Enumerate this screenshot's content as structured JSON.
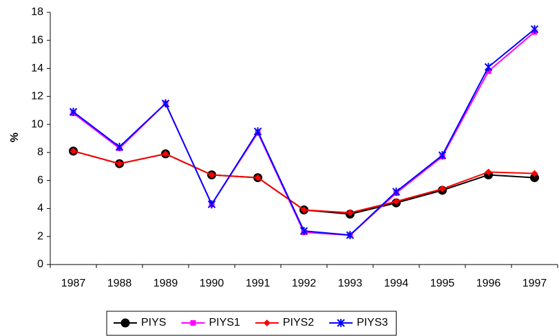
{
  "chart_data": {
    "type": "line",
    "y_label": "%",
    "categories": [
      "1987",
      "1988",
      "1989",
      "1990",
      "1991",
      "1992",
      "1993",
      "1994",
      "1995",
      "1996",
      "1997"
    ],
    "series": [
      {
        "name": "PIYS",
        "color": "#000000",
        "marker": "circle",
        "values": [
          8.1,
          7.2,
          7.9,
          6.4,
          6.2,
          3.9,
          3.6,
          4.4,
          5.3,
          6.4,
          6.2
        ]
      },
      {
        "name": "PIYS1",
        "color": "#ff00ff",
        "marker": "square",
        "values": [
          10.8,
          8.3,
          11.5,
          4.3,
          9.4,
          2.3,
          2.1,
          5.1,
          7.7,
          13.8,
          16.6
        ]
      },
      {
        "name": "PIYS2",
        "color": "#ff0000",
        "marker": "diamond",
        "values": [
          8.1,
          7.2,
          7.9,
          6.4,
          6.2,
          3.9,
          3.7,
          4.5,
          5.4,
          6.6,
          6.5
        ]
      },
      {
        "name": "PIYS3",
        "color": "#0000ff",
        "marker": "star",
        "values": [
          10.9,
          8.4,
          11.5,
          4.3,
          9.5,
          2.4,
          2.1,
          5.2,
          7.8,
          14.1,
          16.8
        ]
      }
    ],
    "ylim": [
      0,
      18
    ],
    "yticks": [
      0,
      2,
      4,
      6,
      8,
      10,
      12,
      14,
      16,
      18
    ],
    "legend": "bottom"
  }
}
